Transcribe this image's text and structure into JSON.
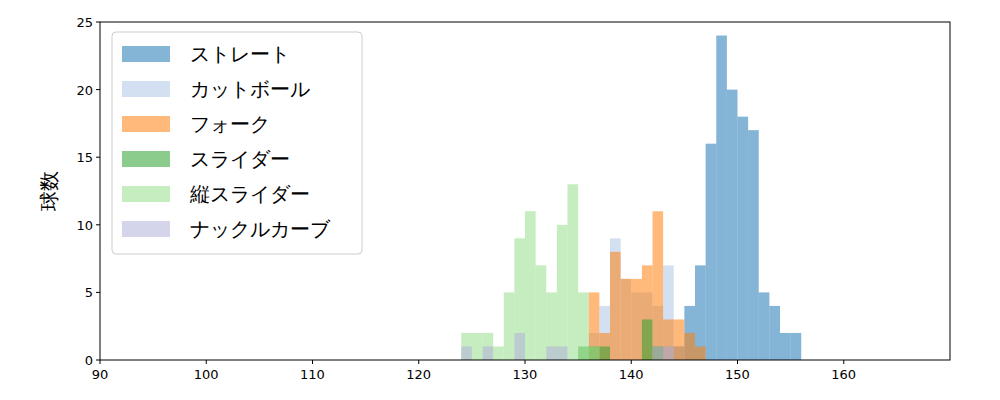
{
  "chart_data": {
    "type": "histogram",
    "y_label": "球数",
    "bins": [
      124,
      125,
      126,
      127,
      128,
      129,
      130,
      131,
      132,
      133,
      134,
      135,
      136,
      137,
      138,
      139,
      140,
      141,
      142,
      143,
      144,
      145,
      146,
      147,
      148,
      149,
      150,
      151,
      152,
      153,
      154,
      155,
      156
    ],
    "series": [
      {
        "name": "ストレート",
        "color": "#1f77b4",
        "values": [
          0,
          0,
          0,
          0,
          0,
          0,
          0,
          0,
          0,
          0,
          0,
          0,
          0,
          0,
          0,
          0,
          0,
          0,
          0,
          1,
          1,
          4,
          7,
          16,
          24,
          20,
          18,
          17,
          5,
          4,
          2,
          2
        ]
      },
      {
        "name": "カットボール",
        "color": "#aec7e8",
        "values": [
          0,
          0,
          0,
          0,
          0,
          0,
          0,
          0,
          0,
          0,
          0,
          0,
          2,
          4,
          9,
          6,
          5,
          5,
          4,
          7,
          1,
          0,
          0,
          0,
          0,
          0,
          0,
          0,
          0,
          0,
          0,
          0
        ]
      },
      {
        "name": "フォーク",
        "color": "#ff7f0e",
        "values": [
          0,
          0,
          0,
          0,
          0,
          0,
          0,
          0,
          0,
          0,
          0,
          0,
          5,
          2,
          8,
          6,
          6,
          7,
          11,
          3,
          3,
          2,
          1,
          0,
          0,
          0,
          0,
          0,
          0,
          0,
          0,
          0
        ]
      },
      {
        "name": "スライダー",
        "color": "#2ca02c",
        "values": [
          0,
          0,
          0,
          0,
          0,
          0,
          0,
          0,
          0,
          0,
          0,
          1,
          1,
          1,
          0,
          0,
          0,
          3,
          1,
          0,
          0,
          0,
          0,
          0,
          0,
          0,
          0,
          0,
          0,
          0,
          0,
          0
        ]
      },
      {
        "name": "縦スライダー",
        "color": "#98df8a",
        "values": [
          2,
          2,
          2,
          1,
          5,
          9,
          11,
          7,
          5,
          10,
          13,
          5,
          1,
          0,
          0,
          0,
          0,
          0,
          0,
          0,
          0,
          0,
          0,
          0,
          0,
          0,
          0,
          0,
          0,
          0,
          0,
          0
        ]
      },
      {
        "name": "ナックルカーブ",
        "color": "#b0b0d8",
        "values": [
          1,
          0,
          1,
          0,
          0,
          2,
          0,
          0,
          1,
          1,
          0,
          0,
          0,
          0,
          0,
          0,
          0,
          0,
          1,
          1,
          0,
          0,
          0,
          0,
          0,
          0,
          0,
          0,
          0,
          0,
          0,
          0
        ]
      }
    ],
    "xlim": [
      90,
      170
    ],
    "xticks": [
      90,
      100,
      110,
      120,
      130,
      140,
      150,
      160
    ],
    "ylim": [
      0,
      25
    ],
    "yticks": [
      0,
      5,
      10,
      15,
      20,
      25
    ],
    "grid": false,
    "legend": "upper left"
  }
}
